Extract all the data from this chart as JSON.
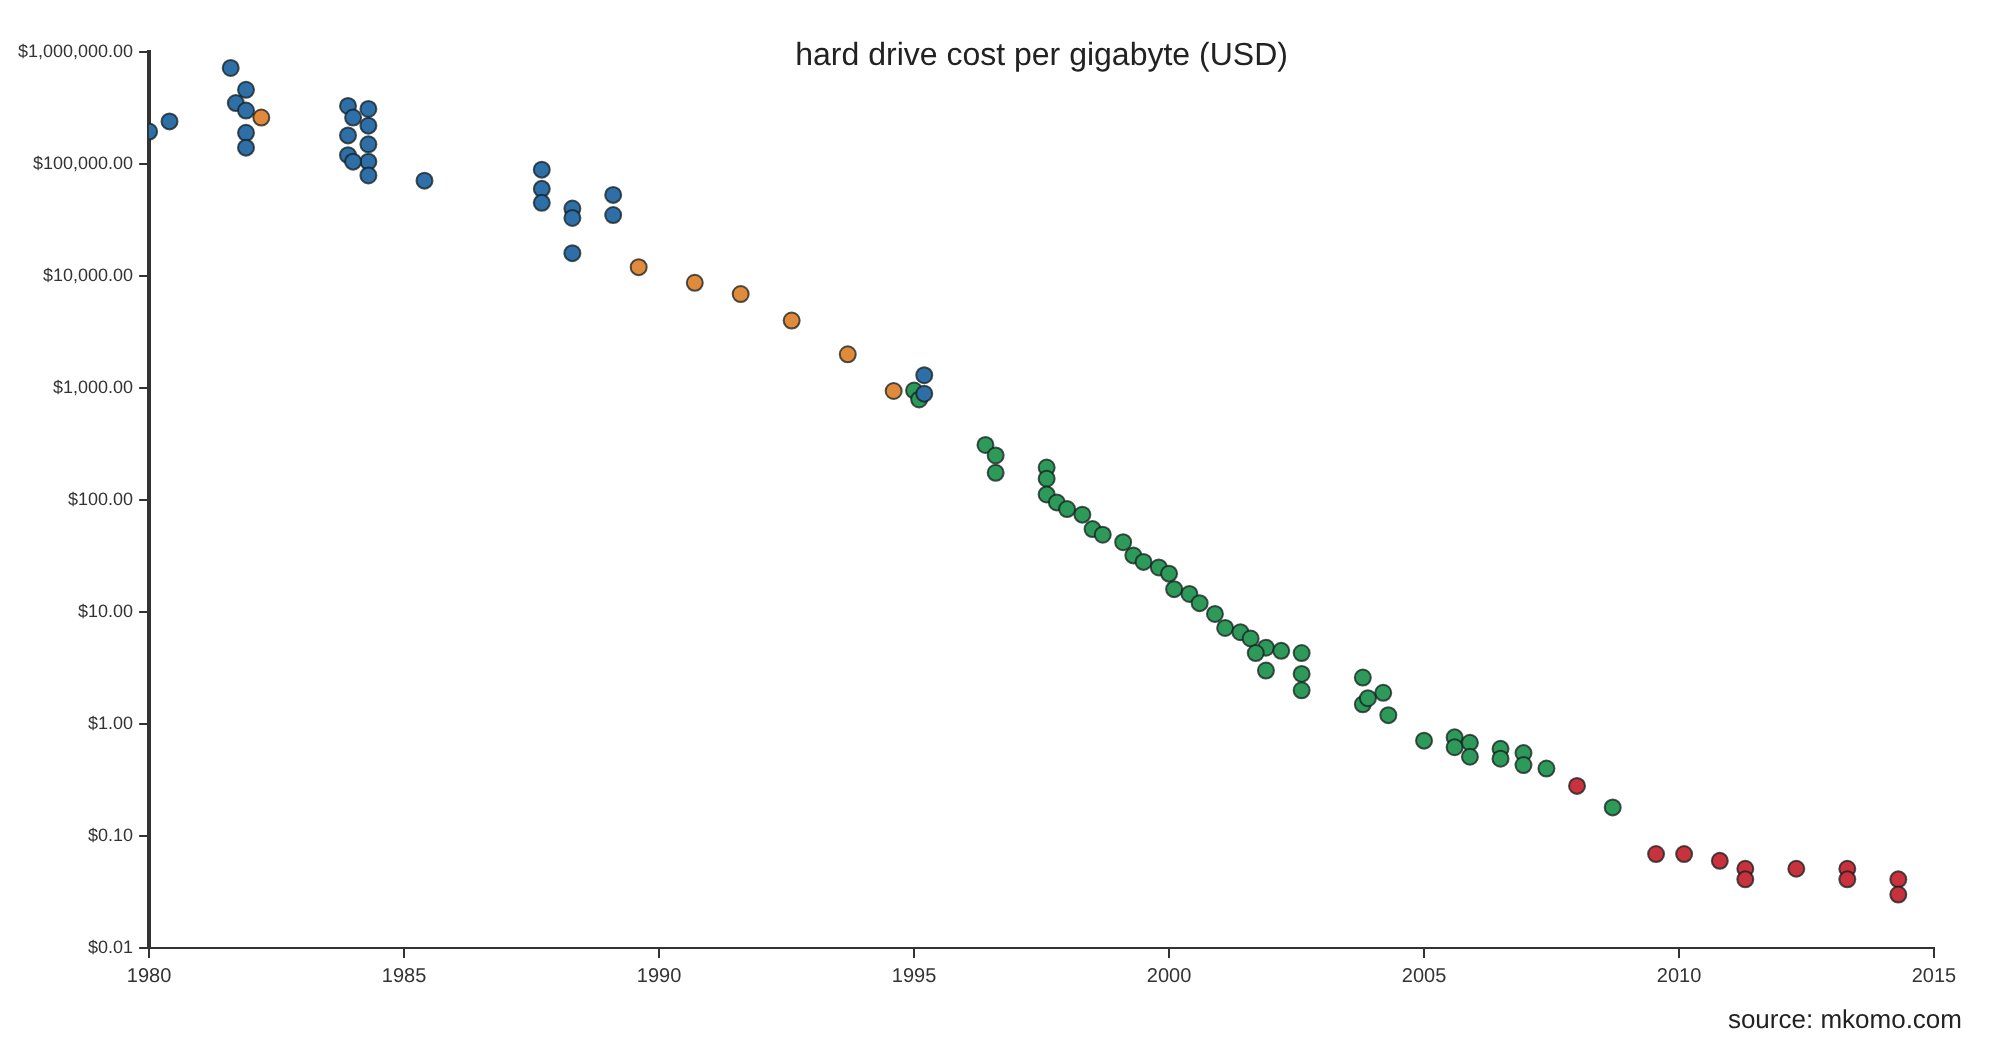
{
  "chart_data": {
    "type": "scatter",
    "title": "hard drive cost per gigabyte (USD)",
    "annotations": [
      "source: mkomo.com"
    ],
    "log": "y",
    "grid": false,
    "legend": false,
    "marker": "circle",
    "xlim": [
      1980,
      2015
    ],
    "xticks": [
      1980,
      1985,
      1990,
      1995,
      2000,
      2005,
      2010,
      2015
    ],
    "ylim": [
      0.01,
      1000000
    ],
    "yticks": [
      {
        "value": 0.01,
        "label": "$0.01"
      },
      {
        "value": 0.1,
        "label": "$0.10"
      },
      {
        "value": 1,
        "label": "$1.00"
      },
      {
        "value": 10,
        "label": "$10.00"
      },
      {
        "value": 100,
        "label": "$100.00"
      },
      {
        "value": 1000,
        "label": "$1,000.00"
      },
      {
        "value": 10000,
        "label": "$10,000.00"
      },
      {
        "value": 100000,
        "label": "$100,000.00"
      },
      {
        "value": 1000000,
        "label": "$1,000,000.00"
      }
    ],
    "series": [
      {
        "color": "#2f6fa8",
        "x": [
          1980.0,
          1980.4,
          1981.6,
          1981.9,
          1981.7,
          1981.9,
          1981.9,
          1981.9,
          1983.9,
          1983.9,
          1983.9,
          1984.0,
          1984.3,
          1984.3,
          1984.3,
          1984.3,
          1984.3,
          1984.0,
          1985.4,
          1987.7,
          1987.7,
          1987.7,
          1988.3,
          1988.3,
          1988.3,
          1989.1,
          1989.1,
          1995.2,
          1995.2
        ],
        "values": [
          195000,
          240000,
          720000,
          460000,
          350000,
          300000,
          190000,
          140000,
          330000,
          180000,
          120000,
          260000,
          310000,
          220000,
          150000,
          105000,
          79000,
          105000,
          71000,
          89000,
          60000,
          45000,
          40000,
          33000,
          16000,
          53000,
          35000,
          1300,
          890
        ]
      },
      {
        "color": "#e08a3c",
        "x": [
          1982.2,
          1989.6,
          1990.7,
          1991.6,
          1992.6,
          1993.7,
          1994.6
        ],
        "values": [
          260000,
          12000,
          8700,
          6900,
          4000,
          2000,
          940
        ]
      },
      {
        "color": "#2e9a5a",
        "x": [
          1995.0,
          1995.1,
          1996.4,
          1996.6,
          1996.6,
          1997.6,
          1997.6,
          1997.6,
          1997.8,
          1998.0,
          1998.3,
          1998.5,
          1998.7,
          1999.1,
          1999.3,
          1999.5,
          1999.8,
          2000.0,
          2000.1,
          2000.4,
          2000.6,
          2000.9,
          2001.1,
          2001.4,
          2001.6,
          2001.9,
          2001.9,
          2002.2,
          2001.7,
          2002.6,
          2002.6,
          2002.6,
          2003.8,
          2003.8,
          2003.9,
          2004.2,
          2004.3,
          2005.0,
          2005.6,
          2005.6,
          2005.9,
          2005.9,
          2006.5,
          2006.5,
          2006.95,
          2006.95,
          2007.4,
          2008.7
        ],
        "values": [
          950,
          790,
          310,
          250,
          175,
          195,
          155,
          112,
          95,
          83,
          74,
          55,
          49,
          42,
          32,
          28,
          25,
          22,
          16,
          14.5,
          12,
          9.6,
          7.2,
          6.6,
          5.8,
          4.8,
          3.0,
          4.5,
          4.3,
          4.3,
          2.8,
          2.0,
          2.6,
          1.5,
          1.7,
          1.9,
          1.2,
          0.71,
          0.76,
          0.62,
          0.68,
          0.51,
          0.6,
          0.49,
          0.55,
          0.43,
          0.4,
          0.18
        ]
      },
      {
        "color": "#c8323c",
        "x": [
          2008.0,
          2009.55,
          2010.1,
          2010.8,
          2011.3,
          2011.3,
          2012.3,
          2013.3,
          2013.3,
          2014.3,
          2014.3
        ],
        "values": [
          0.28,
          0.069,
          0.069,
          0.06,
          0.051,
          0.041,
          0.051,
          0.051,
          0.041,
          0.041,
          0.03
        ]
      }
    ]
  }
}
